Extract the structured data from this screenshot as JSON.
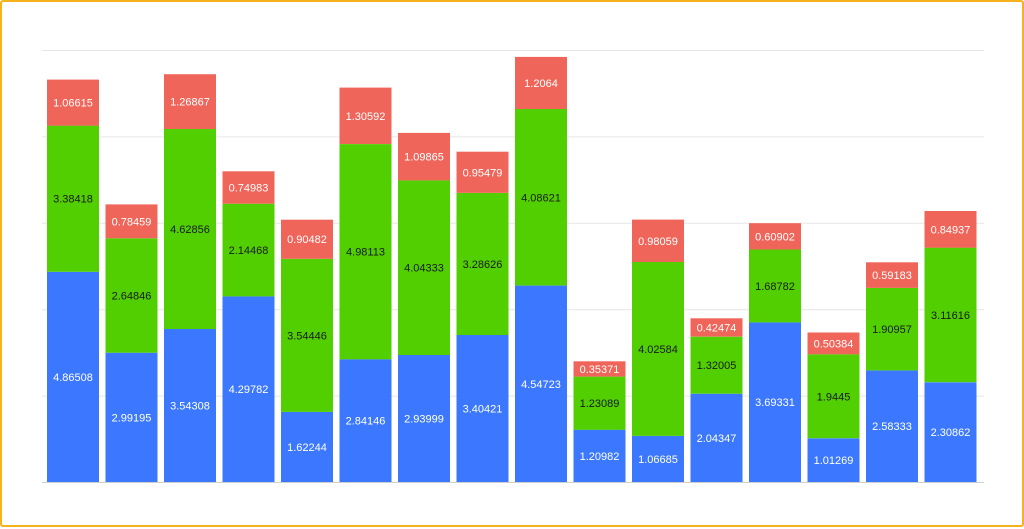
{
  "chart_data": {
    "type": "bar",
    "stacked": true,
    "title": "",
    "xlabel": "",
    "ylabel": "",
    "ylim": [
      0,
      10
    ],
    "grid": true,
    "legend": "none",
    "categories": [
      "",
      "",
      "",
      "",
      "",
      "",
      "",
      "",
      "",
      "",
      "",
      "",
      "",
      "",
      "",
      ""
    ],
    "series": [
      {
        "color": "#3b78ff",
        "label_color": "#ffffff",
        "values": [
          4.86508,
          2.99195,
          3.54308,
          4.29782,
          1.62244,
          2.84146,
          2.93999,
          3.40421,
          4.54723,
          1.20982,
          1.06685,
          2.04347,
          3.69331,
          1.01269,
          2.58333,
          2.30862
        ],
        "labels": [
          "4.86508",
          "2.99195",
          "3.54308",
          "4.29782",
          "1.62244",
          "2.84146",
          "2.93999",
          "3.40421",
          "4.54723",
          "1.20982",
          "1.06685",
          "2.04347",
          "3.69331",
          "1.01269",
          "2.58333",
          "2.30862"
        ]
      },
      {
        "color": "#52cf00",
        "label_color": "#1a1a1a",
        "values": [
          3.38418,
          2.64846,
          4.62856,
          2.14468,
          3.54446,
          4.98113,
          4.04333,
          3.28626,
          4.08621,
          1.23089,
          4.02584,
          1.32005,
          1.68782,
          1.9445,
          1.90957,
          3.11616
        ],
        "labels": [
          "3.38418",
          "2.64846",
          "4.62856",
          "2.14468",
          "3.54446",
          "4.98113",
          "4.04333",
          "3.28626",
          "4.08621",
          "1.23089",
          "4.02584",
          "1.32005",
          "1.68782",
          "1.9445",
          "1.90957",
          "3.11616"
        ]
      },
      {
        "color": "#f0655a",
        "label_color": "#ffffff",
        "values": [
          1.06615,
          0.78459,
          1.26867,
          0.74983,
          0.90482,
          1.30592,
          1.09865,
          0.95479,
          1.2064,
          0.35371,
          0.98059,
          0.42474,
          0.60902,
          0.50384,
          0.59183,
          0.84937
        ],
        "labels": [
          "1.06615",
          "0.78459",
          "1.26867",
          "0.74983",
          "0.90482",
          "1.30592",
          "1.09865",
          "0.95479",
          "1.2064",
          "0.35371",
          "0.98059",
          "0.42474",
          "0.60902",
          "0.50384",
          "0.59183",
          "0.84937"
        ]
      }
    ]
  }
}
